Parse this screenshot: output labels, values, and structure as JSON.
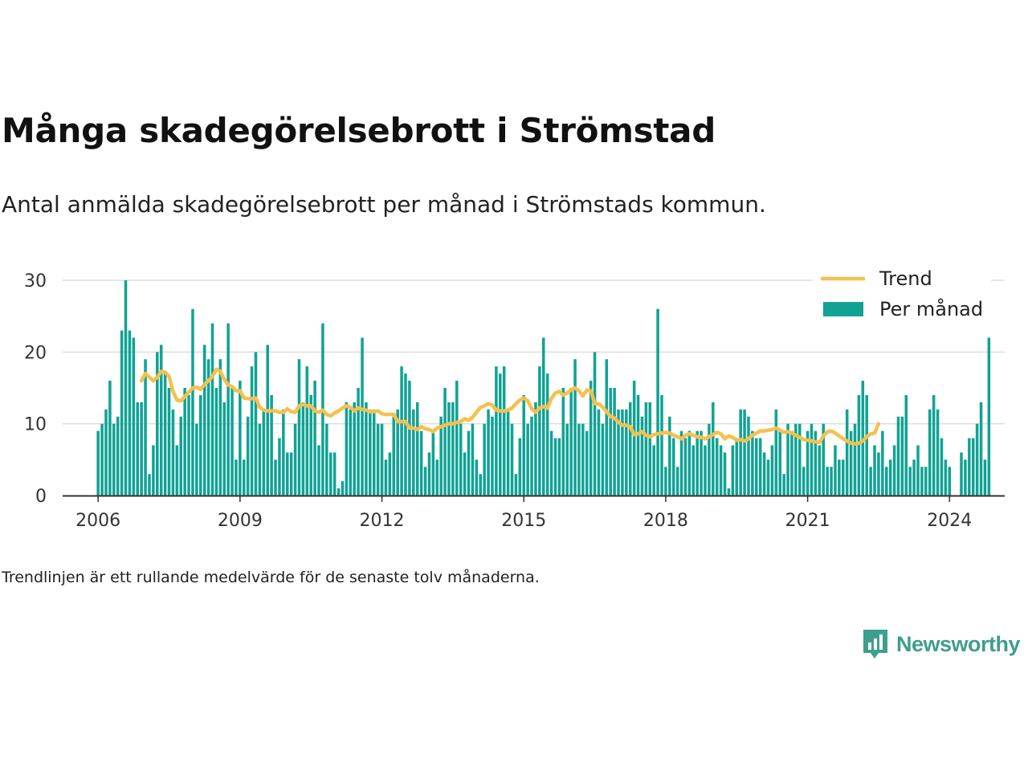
{
  "title": "Många skadegörelsebrott i Strömstad",
  "subtitle": "Antal anmälda skadegörelsebrott per månad i Strömstads kommun.",
  "note": "Trendlinjen är ett rullande medelvärde för de senaste tolv månaderna.",
  "brand": {
    "name": "Newsworthy",
    "logo_icon": "bar-chart-speech-bubble-icon"
  },
  "colors": {
    "bars": "#11a294",
    "trend": "#f5c04f",
    "grid": "#dddddd",
    "axis": "#333333",
    "brand": "#3f9e8e"
  },
  "chart_data": {
    "type": "bar",
    "start": "2006-01",
    "xlim": [
      "2005-04",
      "2025-03"
    ],
    "ylim": [
      0,
      30
    ],
    "x_ticks": [
      "2006",
      "2009",
      "2012",
      "2015",
      "2018",
      "2021",
      "2024"
    ],
    "y_ticks": [
      "0",
      "10",
      "20",
      "30"
    ],
    "grid": true,
    "legend_position": "top-right",
    "series": [
      {
        "name": "Per månad",
        "kind": "bar",
        "values": [
          9,
          10,
          12,
          16,
          10,
          11,
          23,
          30,
          23,
          22,
          13,
          13,
          19,
          3,
          7,
          20,
          21,
          17,
          15,
          12,
          7,
          11,
          15,
          14,
          26,
          10,
          14,
          21,
          19,
          24,
          15,
          19,
          13,
          24,
          15,
          5,
          16,
          5,
          11,
          18,
          20,
          10,
          12,
          21,
          14,
          5,
          8,
          12,
          6,
          6,
          10,
          19,
          13,
          18,
          14,
          16,
          7,
          24,
          10,
          6,
          6,
          1,
          2,
          13,
          12,
          13,
          15,
          22,
          13,
          12,
          12,
          10,
          10,
          5,
          6,
          11,
          12,
          18,
          17,
          16,
          12,
          13,
          9,
          4,
          6,
          9,
          5,
          11,
          15,
          13,
          13,
          16,
          10,
          6,
          9,
          10,
          5,
          3,
          10,
          12,
          11,
          18,
          17,
          18,
          12,
          10,
          3,
          8,
          14,
          10,
          11,
          13,
          18,
          22,
          17,
          9,
          8,
          8,
          15,
          10,
          15,
          19,
          10,
          10,
          9,
          16,
          20,
          12,
          10,
          19,
          15,
          15,
          12,
          12,
          12,
          13,
          16,
          14,
          11,
          13,
          13,
          7,
          26,
          14,
          4,
          11,
          8,
          4,
          9,
          8,
          9,
          7,
          9,
          9,
          7,
          10,
          13,
          8,
          7,
          6,
          1,
          7,
          8,
          12,
          12,
          11,
          9,
          8,
          8,
          6,
          5,
          7,
          12,
          9,
          3,
          10,
          9,
          10,
          10,
          4,
          9,
          10,
          9,
          7,
          10,
          4,
          4,
          7,
          5,
          5,
          12,
          9,
          10,
          14,
          16,
          14,
          4,
          7,
          6,
          9,
          4,
          5,
          7,
          11,
          11,
          14,
          4,
          5,
          7,
          4,
          4,
          12,
          14,
          12,
          8,
          5,
          4,
          0,
          0,
          6,
          5,
          8,
          8,
          10,
          13,
          5,
          22
        ],
        "color": "#11a294"
      },
      {
        "name": "Trend",
        "kind": "line",
        "start": "2006-12",
        "values": [
          16,
          17,
          16.5,
          16,
          16.5,
          17.3,
          17.2,
          16.6,
          14.5,
          13.3,
          13.2,
          13.8,
          14.4,
          15,
          15.1,
          14.8,
          15.5,
          16,
          16.6,
          17.6,
          17.3,
          16.2,
          15.4,
          15.2,
          14.6,
          14.6,
          13.6,
          13.5,
          13.5,
          13.6,
          12.3,
          11.9,
          11.8,
          11.8,
          11.8,
          11.6,
          11.6,
          12.1,
          11.7,
          11.6,
          12.5,
          12.7,
          12.5,
          12.5,
          11.8,
          11.6,
          11.9,
          11.3,
          11.1,
          11.5,
          11.8,
          12.2,
          12.5,
          12.3,
          11.8,
          12.2,
          12,
          11.9,
          11.7,
          11.7,
          11.8,
          11.4,
          11.3,
          11.3,
          11.3,
          10.3,
          10.3,
          10.3,
          9.4,
          9.4,
          9.2,
          9.6,
          9.3,
          9.2,
          8.9,
          9.4,
          9.6,
          9.8,
          10,
          10,
          10.2,
          10.3,
          10.7,
          10.5,
          10.9,
          11.6,
          12.3,
          12.5,
          12.8,
          12.6,
          11.9,
          11.8,
          11.8,
          11.9,
          12.2,
          12.8,
          13.3,
          13.6,
          13.2,
          12.1,
          11.6,
          12.2,
          12.4,
          12.2,
          13.5,
          14.3,
          14.5,
          14,
          14.3,
          14.7,
          15,
          14.6,
          13.9,
          14.7,
          14.6,
          12.8,
          12.8,
          12.3,
          11.7,
          11,
          10.8,
          10.2,
          9.8,
          9.8,
          9.6,
          8.5,
          8.6,
          8.9,
          8.4,
          8.2,
          8.5,
          8.6,
          8.7,
          8.8,
          8.7,
          8.4,
          8.2,
          7.9,
          8.4,
          8.6,
          8.4,
          8.2,
          8.1,
          7.9,
          8.2,
          8.5,
          8.8,
          8.6,
          7.9,
          8.3,
          8.1,
          7.7,
          7.8,
          7.6,
          7.9,
          8.4,
          8.7,
          9,
          9,
          9.1,
          9.2,
          9.4,
          9.1,
          8.8,
          8.9,
          8.7,
          8.4,
          8.1,
          7.8,
          7.7,
          7.6,
          7.5,
          7.4,
          8.3,
          8.9,
          9,
          8.7,
          8.3,
          7.9,
          7.6,
          7.3,
          7.2,
          7.3,
          7.6,
          8.2,
          8.6,
          8.7,
          10
        ],
        "color": "#f5c04f"
      }
    ]
  }
}
